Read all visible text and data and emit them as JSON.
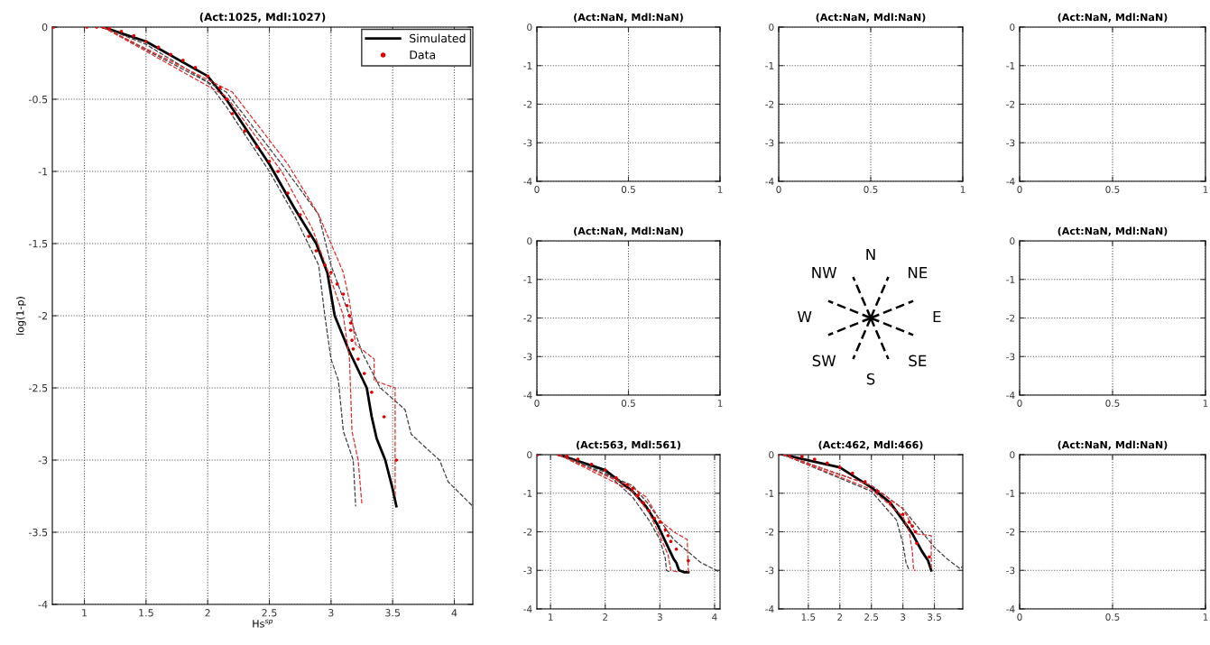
{
  "chart_data": [
    {
      "type": "line",
      "title": "(Act:1025, Mdl:1027)",
      "xlabel": "Hs$^{sp}$",
      "ylabel": "log(1-p)",
      "xlim": [
        0.74,
        4.15
      ],
      "xticks": [
        1,
        1.5,
        2,
        2.5,
        3,
        3.5,
        4
      ],
      "ylim": [
        -4,
        0
      ],
      "yticks": [
        0,
        -0.5,
        -1,
        -1.5,
        -2,
        -2.5,
        -3,
        -3.5,
        -4
      ],
      "grid": true,
      "legend": "top right",
      "series": [
        {
          "type": "line",
          "line_style": "dashed",
          "color": "#404040",
          "x": [
            1.15,
            1.5,
            2.0,
            2.15,
            2.5,
            2.7,
            2.9,
            2.95,
            3.0,
            3.06,
            3.1,
            3.18,
            3.2
          ],
          "values": [
            0,
            -0.12,
            -0.38,
            -0.55,
            -1.0,
            -1.3,
            -1.65,
            -2.0,
            -2.3,
            -2.45,
            -2.8,
            -3.0,
            -3.32
          ]
        },
        {
          "type": "line",
          "line_style": "dashed",
          "color": "#404040",
          "x": [
            1.15,
            2.15,
            2.6,
            2.9,
            3.0,
            3.15,
            3.25,
            3.4,
            3.6,
            3.65,
            3.75,
            3.88,
            3.95,
            4.15
          ],
          "values": [
            0,
            -0.45,
            -0.95,
            -1.3,
            -1.65,
            -2.0,
            -2.25,
            -2.5,
            -2.65,
            -2.82,
            -2.9,
            -3.0,
            -3.15,
            -3.32
          ]
        },
        {
          "type": "line",
          "line_style": "dashed",
          "color": "#e03030",
          "x": [
            1.15,
            2.15,
            2.6,
            2.85,
            3.0,
            3.1,
            3.15,
            3.17,
            3.22,
            3.25
          ],
          "values": [
            0,
            -0.48,
            -1.0,
            -1.4,
            -1.75,
            -2.0,
            -2.3,
            -2.8,
            -3.0,
            -3.3
          ]
        },
        {
          "type": "line",
          "line_style": "dashed",
          "color": "#e03030",
          "x": [
            1.15,
            2.2,
            2.65,
            2.9,
            3.1,
            3.15,
            3.2,
            3.35,
            3.35,
            3.52,
            3.52
          ],
          "values": [
            0,
            -0.45,
            -0.95,
            -1.3,
            -1.7,
            -1.9,
            -2.2,
            -2.3,
            -2.45,
            -2.5,
            -3.25
          ]
        },
        {
          "type": "line",
          "name": "Simulated",
          "line_style": "solid",
          "color": "#000000",
          "x": [
            1.15,
            1.5,
            2.0,
            2.15,
            2.5,
            2.7,
            2.88,
            2.97,
            3.03,
            3.15,
            3.29,
            3.33,
            3.37,
            3.44,
            3.5,
            3.53
          ],
          "values": [
            0,
            -0.1,
            -0.34,
            -0.5,
            -0.95,
            -1.25,
            -1.5,
            -1.7,
            -2.0,
            -2.25,
            -2.5,
            -2.7,
            -2.85,
            -3.0,
            -3.2,
            -3.32
          ]
        },
        {
          "type": "scatter",
          "name": "Data",
          "marker": "circle",
          "color": "#e00000",
          "x": [
            0.75,
            1.02,
            1.1,
            1.15,
            1.2,
            1.3,
            1.4,
            1.5,
            1.6,
            1.7,
            1.8,
            1.9,
            2.0,
            2.1,
            2.15,
            2.2,
            2.3,
            2.4,
            2.5,
            2.57,
            2.65,
            2.75,
            2.82,
            2.88,
            2.95,
            3.0,
            3.05,
            3.1,
            3.13,
            3.15,
            3.16,
            3.16,
            3.17,
            3.18,
            3.22,
            3.27,
            3.33,
            3.43,
            3.53
          ],
          "values": [
            0,
            0,
            0,
            0,
            -0.01,
            -0.03,
            -0.06,
            -0.1,
            -0.14,
            -0.19,
            -0.23,
            -0.28,
            -0.34,
            -0.42,
            -0.5,
            -0.6,
            -0.72,
            -0.83,
            -0.93,
            -1.0,
            -1.15,
            -1.3,
            -1.45,
            -1.55,
            -1.65,
            -1.7,
            -1.78,
            -1.85,
            -1.93,
            -2.0,
            -2.05,
            -2.1,
            -2.17,
            -2.23,
            -2.3,
            -2.4,
            -2.53,
            -2.7,
            -3.0
          ]
        }
      ]
    },
    {
      "type": "line",
      "title": "(Act:NaN, Mdl:NaN)",
      "xlim": [
        0,
        1
      ],
      "xticks": [
        0,
        0.5,
        1
      ],
      "ylim": [
        -4,
        0
      ],
      "yticks": [
        0,
        -1,
        -2,
        -3,
        -4
      ],
      "grid": true
    },
    {
      "type": "line",
      "title": "(Act:NaN, Mdl:NaN)",
      "xlim": [
        0,
        1
      ],
      "xticks": [
        0,
        0.5,
        1
      ],
      "ylim": [
        -4,
        0
      ],
      "yticks": [
        0,
        -1,
        -2,
        -3,
        -4
      ],
      "grid": true
    },
    {
      "type": "line",
      "title": "(Act:NaN, Mdl:NaN)",
      "xlim": [
        0,
        1
      ],
      "xticks": [
        0,
        0.5,
        1
      ],
      "ylim": [
        -4,
        0
      ],
      "yticks": [
        0,
        -1,
        -2,
        -3,
        -4
      ],
      "grid": true
    },
    {
      "type": "line",
      "title": "(Act:NaN, Mdl:NaN)",
      "xlim": [
        0,
        1
      ],
      "xticks": [
        0,
        0.5,
        1
      ],
      "ylim": [
        -4,
        0
      ],
      "yticks": [
        0,
        -1,
        -2,
        -3,
        -4
      ],
      "grid": true
    },
    {
      "type": "other",
      "annotations": [
        "N",
        "NE",
        "E",
        "SE",
        "S",
        "SW",
        "W",
        "NW"
      ]
    },
    {
      "type": "line",
      "title": "(Act:NaN, Mdl:NaN)",
      "xlim": [
        0,
        1
      ],
      "xticks": [
        0,
        0.5,
        1
      ],
      "ylim": [
        -4,
        0
      ],
      "yticks": [
        0,
        -1,
        -2,
        -3,
        -4
      ],
      "grid": true
    },
    {
      "type": "line",
      "title": "(Act:563, Mdl:561)",
      "xlim": [
        0.75,
        4.1
      ],
      "xticks": [
        1,
        2,
        3,
        4
      ],
      "ylim": [
        -4,
        0
      ],
      "yticks": [
        0,
        -1,
        -2,
        -3,
        -4
      ],
      "grid": true,
      "series": [
        {
          "type": "line",
          "line_style": "dashed",
          "color": "#404040",
          "x": [
            1.15,
            2.0,
            2.5,
            2.8,
            3.0,
            3.1,
            3.12,
            3.2
          ],
          "values": [
            0,
            -0.45,
            -1.1,
            -1.7,
            -2.2,
            -2.7,
            -3.0,
            -3.05
          ]
        },
        {
          "type": "line",
          "line_style": "dashed",
          "color": "#404040",
          "x": [
            1.15,
            2.5,
            2.8,
            3.0,
            3.25,
            3.5,
            3.75,
            4.1
          ],
          "values": [
            0,
            -0.8,
            -1.3,
            -1.7,
            -2.2,
            -2.5,
            -2.8,
            -3.05
          ]
        },
        {
          "type": "line",
          "line_style": "dashed",
          "color": "#e03030",
          "x": [
            1.15,
            2.5,
            2.8,
            3.0,
            3.15,
            3.2,
            3.35
          ],
          "values": [
            0,
            -0.95,
            -1.5,
            -2.1,
            -2.6,
            -3.0,
            -3.05
          ]
        },
        {
          "type": "line",
          "line_style": "dashed",
          "color": "#e03030",
          "x": [
            1.15,
            2.5,
            2.75,
            3.0,
            3.25,
            3.5,
            3.52
          ],
          "values": [
            0,
            -0.85,
            -1.1,
            -1.7,
            -2.0,
            -2.2,
            -3.05
          ]
        },
        {
          "type": "line",
          "line_style": "solid",
          "color": "#000000",
          "x": [
            1.15,
            2.0,
            2.5,
            2.75,
            2.95,
            3.05,
            3.15,
            3.25,
            3.3,
            3.35,
            3.45,
            3.52
          ],
          "values": [
            0,
            -0.4,
            -0.95,
            -1.35,
            -1.8,
            -2.1,
            -2.4,
            -2.7,
            -2.8,
            -3.0,
            -3.05,
            -3.05
          ]
        },
        {
          "type": "scatter",
          "marker": "circle",
          "color": "#e00000",
          "x": [
            0.76,
            1.15,
            1.3,
            1.5,
            1.75,
            2.0,
            2.2,
            2.4,
            2.5,
            2.6,
            2.7,
            2.8,
            2.9,
            3.0,
            3.1,
            3.15,
            3.2,
            3.3,
            3.52
          ],
          "values": [
            0,
            0,
            -0.04,
            -0.12,
            -0.25,
            -0.4,
            -0.6,
            -0.78,
            -0.88,
            -1.05,
            -1.25,
            -1.45,
            -1.65,
            -1.75,
            -1.95,
            -2.1,
            -2.25,
            -2.45,
            -2.75
          ]
        }
      ]
    },
    {
      "type": "line",
      "title": "(Act:462, Mdl:466)",
      "xlim": [
        1.03,
        3.95
      ],
      "xticks": [
        1.5,
        2,
        2.5,
        3,
        3.5
      ],
      "ylim": [
        -4,
        0
      ],
      "yticks": [
        0,
        -1,
        -2,
        -3,
        -4
      ],
      "grid": true,
      "series": [
        {
          "type": "line",
          "line_style": "dashed",
          "color": "#404040",
          "x": [
            1.1,
            2.5,
            2.9,
            3.0,
            3.05,
            3.1
          ],
          "values": [
            0,
            -0.95,
            -1.7,
            -2.3,
            -2.8,
            -3.0
          ]
        },
        {
          "type": "line",
          "line_style": "dashed",
          "color": "#404040",
          "x": [
            1.1,
            2.5,
            3.0,
            3.3,
            3.5,
            3.7,
            3.9,
            3.95
          ],
          "values": [
            0,
            -0.8,
            -1.4,
            -2.0,
            -2.4,
            -2.7,
            -2.95,
            -2.9
          ]
        },
        {
          "type": "line",
          "line_style": "dashed",
          "color": "#e03030",
          "x": [
            1.1,
            2.5,
            3.0,
            3.1,
            3.15,
            3.17,
            3.2
          ],
          "values": [
            0,
            -0.9,
            -1.6,
            -2.0,
            -2.5,
            -3.0,
            -3.0
          ]
        },
        {
          "type": "line",
          "line_style": "dashed",
          "color": "#e03030",
          "x": [
            1.1,
            2.5,
            3.0,
            3.1,
            3.2,
            3.45,
            3.45
          ],
          "values": [
            0,
            -0.8,
            -1.4,
            -1.7,
            -2.05,
            -2.1,
            -3.0
          ]
        },
        {
          "type": "line",
          "line_style": "solid",
          "color": "#000000",
          "x": [
            1.1,
            2.0,
            2.5,
            2.8,
            3.0,
            3.15,
            3.3,
            3.4,
            3.45
          ],
          "values": [
            0,
            -0.33,
            -0.85,
            -1.25,
            -1.7,
            -2.05,
            -2.5,
            -2.75,
            -3.0
          ]
        },
        {
          "type": "scatter",
          "marker": "circle",
          "color": "#e00000",
          "x": [
            1.03,
            1.2,
            1.4,
            1.6,
            1.8,
            2.0,
            2.2,
            2.4,
            2.6,
            2.8,
            3.0,
            3.1,
            3.15,
            3.2,
            3.22,
            3.42
          ],
          "values": [
            0,
            0,
            -0.05,
            -0.12,
            -0.22,
            -0.33,
            -0.48,
            -0.7,
            -0.95,
            -1.25,
            -1.55,
            -1.75,
            -1.85,
            -2.0,
            -2.3,
            -2.65
          ]
        }
      ]
    },
    {
      "type": "line",
      "title": "(Act:NaN, Mdl:NaN)",
      "xlim": [
        0,
        1
      ],
      "xticks": [
        0,
        0.5,
        1
      ],
      "ylim": [
        -4,
        0
      ],
      "yticks": [
        0,
        -1,
        -2,
        -3,
        -4
      ],
      "grid": true
    }
  ]
}
